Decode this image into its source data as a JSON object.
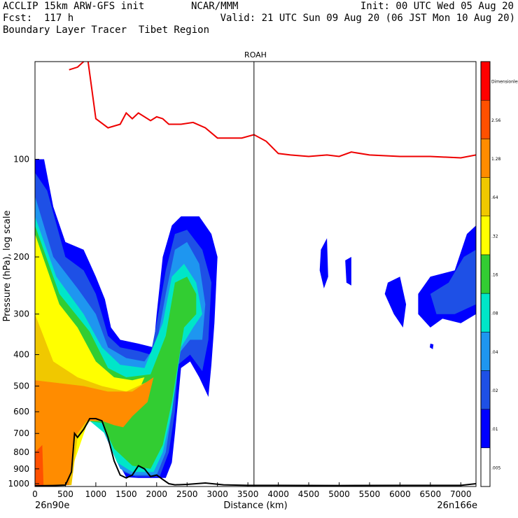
{
  "header": {
    "left1": "ACCLIP 15km ARW-GFS init",
    "left2": "Fcst:  117 h",
    "left3": "Boundary Layer Tracer  Tibet Region",
    "mid1": "NCAR/MMM",
    "right1": "Init: 00 UTC Wed 05 Aug 20",
    "right2": "Valid: 21 UTC Sun 09 Aug 20 (06 JST Mon 10 Aug 20)"
  },
  "chart_data": {
    "type": "cross-section",
    "title": "ROAH",
    "xlabel": "Distance (km)",
    "ylabel": "Pressure (hPa), log scale",
    "x_ticks": [
      0,
      500,
      1000,
      1500,
      2000,
      2500,
      3000,
      3500,
      4000,
      4500,
      5000,
      5500,
      6000,
      6500,
      7000
    ],
    "y_ticks": [
      100,
      200,
      300,
      400,
      500,
      600,
      700,
      800,
      900,
      1000
    ],
    "xlim": [
      0,
      7250
    ],
    "ylim": [
      1020,
      50
    ],
    "left_endpoint": "26n90e",
    "right_endpoint": "26n166e",
    "marker_x": 3600,
    "colorbar": {
      "levels": [
        ".005",
        ".01",
        ".02",
        ".04",
        ".08",
        ".16",
        ".32",
        ".64",
        "1.28",
        "2.56",
        "Dimensionless"
      ],
      "colors": [
        "#ffffff",
        "#0000ff",
        "#1e50e6",
        "#1e96f0",
        "#00e6c8",
        "#32cd32",
        "#ffff00",
        "#f0c800",
        "#ff8c00",
        "#ff5000",
        "#ff0000"
      ]
    },
    "tropopause_line": {
      "color": "#ee0000",
      "x": [
        560,
        700,
        800,
        860,
        920,
        1000,
        1200,
        1400,
        1500,
        1600,
        1700,
        1900,
        2000,
        2100,
        2200,
        2400,
        2600,
        2800,
        3000,
        3200,
        3400,
        3600,
        3800,
        4000,
        4200,
        4500,
        4800,
        5000,
        5200,
        5500,
        6000,
        6500,
        7000,
        7250
      ],
      "y": [
        53,
        52,
        50,
        48,
        58,
        75,
        80,
        78,
        72,
        75,
        72,
        76,
        74,
        75,
        78,
        78,
        77,
        80,
        86,
        86,
        86,
        84,
        88,
        96,
        97,
        98,
        97,
        98,
        95,
        97,
        98,
        98,
        99,
        97
      ]
    },
    "terrain_line": {
      "color": "#000000",
      "x": [
        0,
        300,
        500,
        600,
        650,
        700,
        800,
        900,
        1000,
        1100,
        1200,
        1300,
        1400,
        1500,
        1600,
        1700,
        1800,
        1900,
        2000,
        2100,
        2200,
        2300,
        2500,
        2800,
        3100,
        3500,
        4000,
        5000,
        6000,
        7000,
        7250
      ],
      "y": [
        1015,
        1013,
        1010,
        920,
        700,
        720,
        680,
        630,
        630,
        640,
        720,
        850,
        940,
        960,
        940,
        880,
        900,
        950,
        940,
        970,
        1000,
        1008,
        1005,
        995,
        1008,
        1012,
        1012,
        1013,
        1012,
        1012,
        1000
      ]
    },
    "tracer_region": {
      "main_plume_x_range": [
        0,
        3000
      ],
      "main_plume_pressure_range": [
        1020,
        100
      ],
      "upper_tracer_x_range": [
        4700,
        7250
      ],
      "upper_tracer_pressure_range": [
        170,
        300
      ]
    }
  }
}
